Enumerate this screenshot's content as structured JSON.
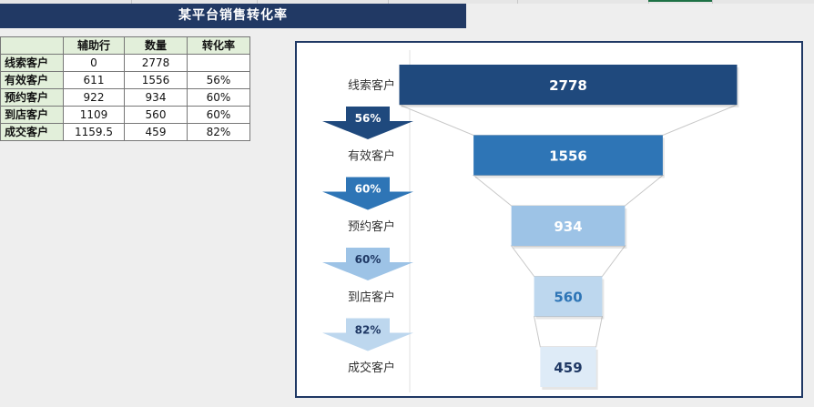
{
  "title": "某平台销售转化率",
  "table": {
    "headers": [
      "",
      "辅助行",
      "数量",
      "转化率"
    ],
    "rows": [
      [
        "线索客户",
        "0",
        "2778",
        ""
      ],
      [
        "有效客户",
        "611",
        "1556",
        "56%"
      ],
      [
        "预约客户",
        "922",
        "934",
        "60%"
      ],
      [
        "到店客户",
        "1109",
        "560",
        "60%"
      ],
      [
        "成交客户",
        "1159.5",
        "459",
        "82%"
      ]
    ]
  },
  "chart_data": {
    "type": "bar",
    "subtype": "funnel",
    "categories": [
      "线索客户",
      "有效客户",
      "预约客户",
      "到店客户",
      "成交客户"
    ],
    "values": [
      2778,
      1556,
      934,
      560,
      459
    ],
    "conversion_rates": [
      "56%",
      "60%",
      "60%",
      "82%"
    ],
    "colors": {
      "bars": [
        "#1f497d",
        "#2e75b6",
        "#9dc3e6",
        "#bdd7ee",
        "#deebf7"
      ],
      "value_text": [
        "#ffffff",
        "#ffffff",
        "#ffffff",
        "#2e75b6",
        "#1f3864"
      ],
      "arrows": [
        "#1f497d",
        "#2e75b6",
        "#9dc3e6",
        "#bdd7ee"
      ],
      "arrow_text": [
        "#ffffff",
        "#ffffff",
        "#1f3864",
        "#1f3864"
      ]
    }
  }
}
